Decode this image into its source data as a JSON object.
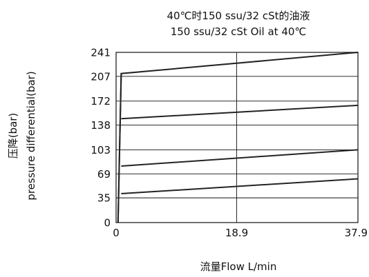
{
  "chart_data": {
    "type": "line",
    "title_line1": "40℃时150 ssu/32 cSt的油液",
    "title_line2": "150 ssu/32 cSt Oil at 40℃",
    "ylabel_line1": "压降(bar)",
    "ylabel_line2": "pressure differential(bar)",
    "xlabel": "流量Flow  L/min",
    "xticks": [
      0,
      18.9,
      37.9
    ],
    "xtick_labels": [
      "0",
      "18.9",
      "37.9"
    ],
    "yticks": [
      0,
      35,
      69,
      103,
      138,
      172,
      207,
      241
    ],
    "ytick_labels": [
      "0",
      "35",
      "69",
      "103",
      "138",
      "172",
      "207",
      "241"
    ],
    "xlim": [
      0,
      37.9
    ],
    "ylim": [
      0,
      241
    ],
    "grid": true,
    "series": [
      {
        "x": [
          0.3,
          0.8,
          37.9
        ],
        "y": [
          0,
          211,
          241
        ]
      },
      {
        "x": [
          0.8,
          37.9
        ],
        "y": [
          147,
          166
        ]
      },
      {
        "x": [
          0.8,
          37.9
        ],
        "y": [
          80,
          103
        ]
      },
      {
        "x": [
          0.8,
          37.9
        ],
        "y": [
          41,
          62
        ]
      },
      {
        "x": [
          0.3,
          0.8
        ],
        "y": [
          0,
          211
        ]
      }
    ],
    "colors": {
      "axis": "#111111",
      "grid": "#111111",
      "line": "#222222"
    }
  }
}
